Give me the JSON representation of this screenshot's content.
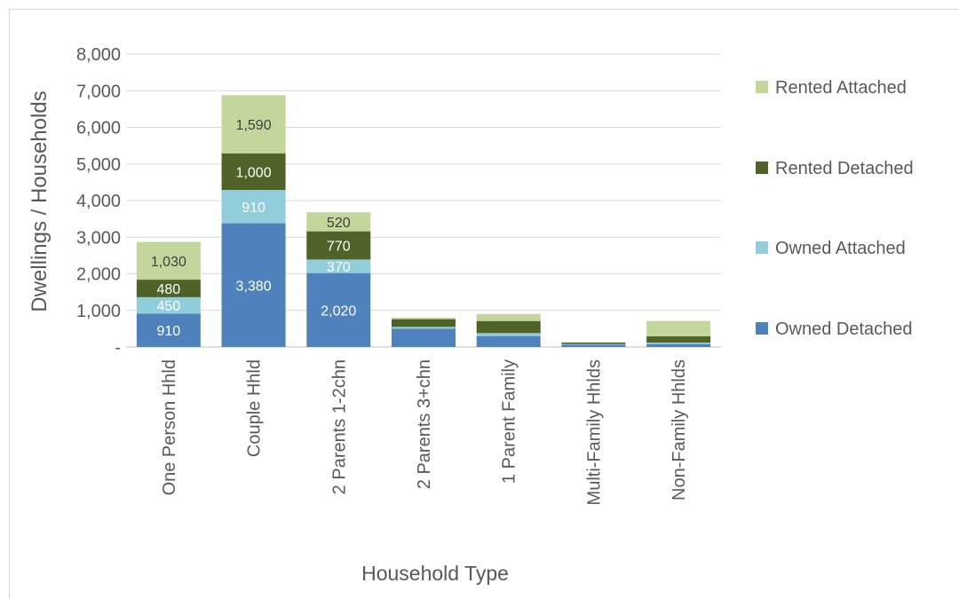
{
  "chart_data": {
    "type": "bar",
    "stacked": true,
    "title": "",
    "xlabel": "Household Type",
    "ylabel": "Dwellings / Households",
    "ylim": [
      0,
      8000
    ],
    "yticks": [
      0,
      1000,
      2000,
      3000,
      4000,
      5000,
      6000,
      7000,
      8000
    ],
    "ytick_labels": [
      "-",
      "1,000",
      "2,000",
      "3,000",
      "4,000",
      "5,000",
      "6,000",
      "7,000",
      "8,000"
    ],
    "grid": true,
    "legend_position": "right",
    "categories": [
      "One Person Hhld",
      "Couple Hhld",
      "2 Parents 1-2chn",
      "2 Parents 3+chn",
      "1 Parent Family",
      "Multi-Family Hhlds",
      "Non-Family Hhlds"
    ],
    "series": [
      {
        "name": "Owned Detached",
        "color": "#4f81bd",
        "label_color": "#ffffff",
        "values": [
          910,
          3380,
          2020,
          500,
          300,
          60,
          80
        ],
        "labels": [
          "910",
          "3,380",
          "2,020",
          "",
          "",
          "",
          ""
        ]
      },
      {
        "name": "Owned Attached",
        "color": "#92cddc",
        "label_color": "#ffffff",
        "values": [
          450,
          910,
          370,
          50,
          80,
          20,
          40
        ],
        "labels": [
          "450",
          "910",
          "370",
          "",
          "",
          "",
          ""
        ]
      },
      {
        "name": "Rented Detached",
        "color": "#4f6228",
        "label_color": "#ffffff",
        "values": [
          480,
          1000,
          770,
          210,
          330,
          40,
          170
        ],
        "labels": [
          "480",
          "1,000",
          "770",
          "",
          "",
          "",
          ""
        ]
      },
      {
        "name": "Rented Attached",
        "color": "#c3d69b",
        "label_color": "#404040",
        "values": [
          1030,
          1590,
          520,
          40,
          190,
          10,
          420
        ],
        "labels": [
          "1,030",
          "1,590",
          "520",
          "",
          "",
          "",
          ""
        ]
      }
    ]
  }
}
